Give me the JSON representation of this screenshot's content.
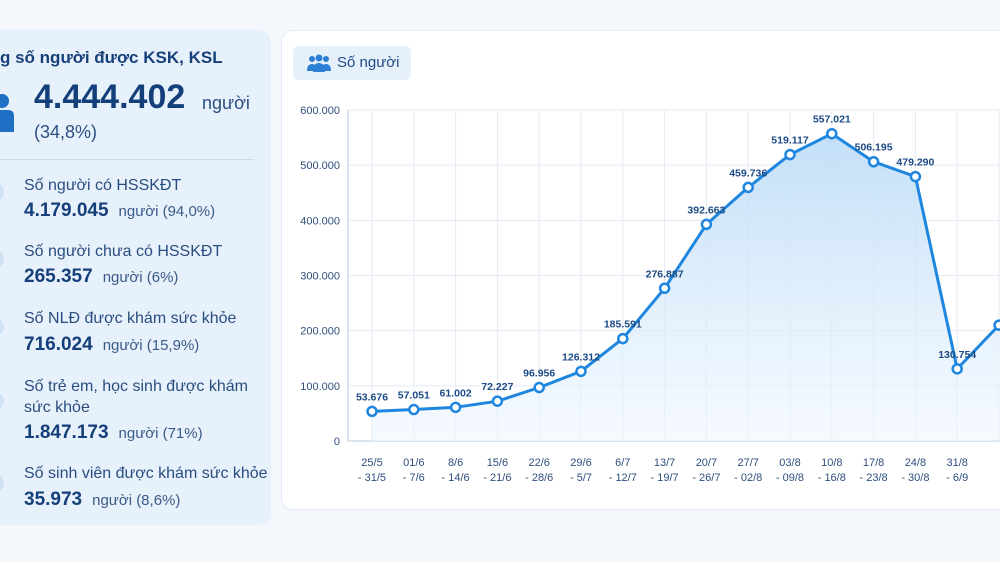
{
  "summary": {
    "title": "g số người được KSK, KSL",
    "total_value": "4.444.402",
    "total_unit": "người",
    "total_pct": "(34,8%)"
  },
  "stats": [
    {
      "label": "Số người có HSSKĐT",
      "value": "4.179.045",
      "unit": "người (94,0%)"
    },
    {
      "label": "Số người chưa có HSSKĐT",
      "value": "265.357",
      "unit": "người (6%)"
    },
    {
      "label": "Số NLĐ được khám sức khỏe",
      "value": "716.024",
      "unit": "người (15,9%)"
    },
    {
      "label": "Số trẻ em, học sinh được khám",
      "label2": "sức khỏe",
      "value": "1.847.173",
      "unit": "người (71%)"
    },
    {
      "label": "Số sinh viên được khám sức khỏe",
      "value": "35.973",
      "unit": "người (8,6%)"
    }
  ],
  "colors": {
    "line": "#1f86e0",
    "area_top": "#bcdcf7",
    "area_bottom": "#eef6fe",
    "grid": "#e3ebf4"
  },
  "chart_data": {
    "type": "area",
    "legend": "Số người",
    "legend_icon": "people-icon",
    "y_ticks": [
      "0",
      "100.000",
      "200.000",
      "300.000",
      "400.000",
      "500.000",
      "600.000"
    ],
    "ylim": [
      0,
      600000
    ],
    "categories": [
      [
        "25/5",
        "- 31/5"
      ],
      [
        "01/6",
        "- 7/6"
      ],
      [
        "8/6",
        "- 14/6"
      ],
      [
        "15/6",
        "- 21/6"
      ],
      [
        "22/6",
        "- 28/6"
      ],
      [
        "29/6",
        "- 5/7"
      ],
      [
        "6/7",
        "- 12/7"
      ],
      [
        "13/7",
        "- 19/7"
      ],
      [
        "20/7",
        "- 26/7"
      ],
      [
        "27/7",
        "- 02/8"
      ],
      [
        "03/8",
        "- 09/8"
      ],
      [
        "10/8",
        "- 16/8"
      ],
      [
        "17/8",
        "- 23/8"
      ],
      [
        "24/8",
        "- 30/8"
      ],
      [
        "31/8",
        "- 6/9"
      ],
      [
        "",
        ""
      ]
    ],
    "values": [
      53676,
      57051,
      61002,
      72227,
      96956,
      126312,
      185591,
      276887,
      392663,
      459736,
      519117,
      557021,
      506195,
      479290,
      130754,
      210000
    ],
    "labels": [
      "53.676",
      "57.051",
      "61.002",
      "72.227",
      "96.956",
      "126.312",
      "185.591",
      "276.887",
      "392.663",
      "459.736",
      "519.117",
      "557.021",
      "506.195",
      "479.290",
      "130.754",
      ""
    ]
  }
}
